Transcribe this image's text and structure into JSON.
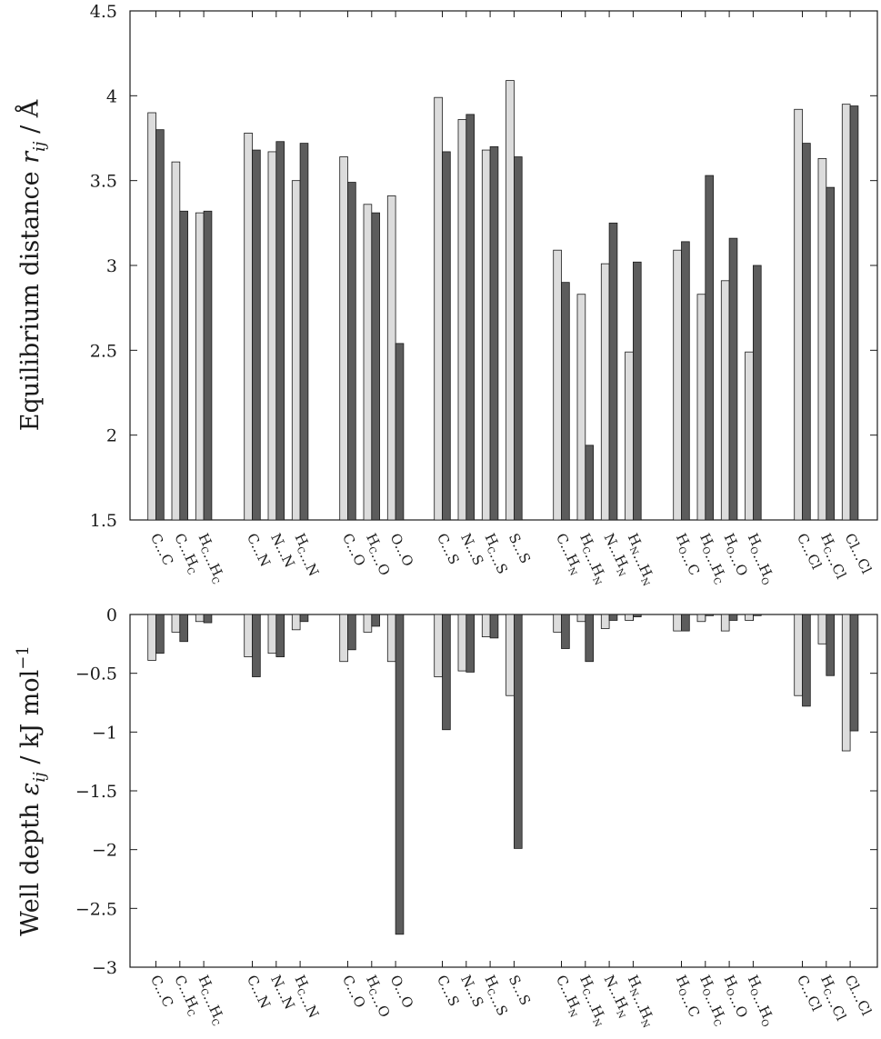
{
  "chart_data": [
    {
      "type": "bar",
      "ylabel": "Equilibrium distance r_ij / Å",
      "ylabel_main": "Equilibrium distance ",
      "ylabel_sym": "r",
      "ylabel_sub": "ij",
      "ylabel_unit": " / Å",
      "ylim": [
        1.5,
        4.5
      ],
      "yticks": [
        1.5,
        2,
        2.5,
        3,
        3.5,
        4,
        4.5
      ],
      "ytick_labels": [
        "1.5",
        "2",
        "2.5",
        "3",
        "3.5",
        "4",
        "4.5"
      ],
      "grid": false,
      "categories": [
        "C...C",
        "C...Hc",
        "Hc...Hc",
        "C...N",
        "N...N",
        "Hc...N",
        "C...O",
        "Hc...O",
        "O...O",
        "C...S",
        "N...S",
        "Hc...S",
        "S...S",
        "C...HN",
        "Hc...HN",
        "N...HN",
        "HN...HN",
        "Ho...C",
        "Ho...Hc",
        "Ho...O",
        "Ho...Ho",
        "C...Cl",
        "Hc...Cl",
        "Cl...Cl"
      ],
      "series": [
        {
          "color": "#dcdcdc",
          "values": [
            3.9,
            3.61,
            3.31,
            3.78,
            3.67,
            3.5,
            3.64,
            3.36,
            3.41,
            3.99,
            3.86,
            3.68,
            4.09,
            3.09,
            2.83,
            3.01,
            2.49,
            3.09,
            2.83,
            2.91,
            2.49,
            3.92,
            3.63,
            3.95
          ]
        },
        {
          "color": "#5c5c5c",
          "values": [
            3.8,
            3.32,
            3.32,
            3.68,
            3.73,
            3.72,
            3.49,
            3.31,
            2.54,
            3.67,
            3.89,
            3.7,
            3.64,
            2.9,
            1.94,
            3.25,
            3.02,
            3.14,
            3.53,
            3.16,
            3.0,
            3.72,
            3.46,
            3.94
          ]
        }
      ]
    },
    {
      "type": "bar",
      "ylabel": "Well depth ε_ij / kJ mol^-1",
      "ylabel_main": "Well depth ",
      "ylabel_sym": "ε",
      "ylabel_sub": "ij",
      "ylabel_unit": " / kJ mol",
      "ylabel_sup": "−1",
      "ylim": [
        -3,
        0
      ],
      "yticks": [
        -3,
        -2.5,
        -2,
        -1.5,
        -1,
        -0.5,
        0
      ],
      "ytick_labels": [
        "−3",
        "−2.5",
        "−2",
        "−1.5",
        "−1",
        "−0.5",
        "0"
      ],
      "grid": false,
      "categories": [
        "C...C",
        "C...Hc",
        "Hc...Hc",
        "C...N",
        "N...N",
        "Hc...N",
        "C...O",
        "Hc...O",
        "O...O",
        "C...S",
        "N...S",
        "Hc...S",
        "S...S",
        "C...HN",
        "Hc...HN",
        "N...HN",
        "HN...HN",
        "Ho...C",
        "Ho...Hc",
        "Ho...O",
        "Ho...Ho",
        "C...Cl",
        "Hc...Cl",
        "Cl...Cl"
      ],
      "series": [
        {
          "color": "#dcdcdc",
          "values": [
            -0.39,
            -0.15,
            -0.06,
            -0.36,
            -0.33,
            -0.13,
            -0.4,
            -0.15,
            -0.4,
            -0.53,
            -0.48,
            -0.19,
            -0.69,
            -0.15,
            -0.06,
            -0.12,
            -0.05,
            -0.14,
            -0.06,
            -0.14,
            -0.05,
            -0.69,
            -0.25,
            -1.16
          ]
        },
        {
          "color": "#5c5c5c",
          "values": [
            -0.33,
            -0.23,
            -0.07,
            -0.53,
            -0.36,
            -0.06,
            -0.3,
            -0.1,
            -2.72,
            -0.98,
            -0.49,
            -0.2,
            -1.99,
            -0.29,
            -0.4,
            -0.05,
            -0.02,
            -0.14,
            -0.01,
            -0.05,
            -0.01,
            -0.78,
            -0.52,
            -0.99
          ]
        }
      ]
    }
  ],
  "category_labels": [
    {
      "parts": [
        [
          "C",
          ""
        ],
        [
          "...",
          ""
        ],
        [
          "C",
          ""
        ]
      ]
    },
    {
      "parts": [
        [
          "C",
          ""
        ],
        [
          "...",
          ""
        ],
        [
          "H",
          "C"
        ]
      ]
    },
    {
      "parts": [
        [
          "H",
          "C"
        ],
        [
          "...",
          ""
        ],
        [
          "H",
          "C"
        ]
      ]
    },
    {
      "parts": [
        [
          "C",
          ""
        ],
        [
          "...",
          ""
        ],
        [
          "N",
          ""
        ]
      ]
    },
    {
      "parts": [
        [
          "N",
          ""
        ],
        [
          "...",
          ""
        ],
        [
          "N",
          ""
        ]
      ]
    },
    {
      "parts": [
        [
          "H",
          "C"
        ],
        [
          "...",
          ""
        ],
        [
          "N",
          ""
        ]
      ]
    },
    {
      "parts": [
        [
          "C",
          ""
        ],
        [
          "...",
          ""
        ],
        [
          "O",
          ""
        ]
      ]
    },
    {
      "parts": [
        [
          "H",
          "C"
        ],
        [
          "...",
          ""
        ],
        [
          "O",
          ""
        ]
      ]
    },
    {
      "parts": [
        [
          "O",
          ""
        ],
        [
          "...",
          ""
        ],
        [
          "O",
          ""
        ]
      ]
    },
    {
      "parts": [
        [
          "C",
          ""
        ],
        [
          "...",
          ""
        ],
        [
          "S",
          ""
        ]
      ]
    },
    {
      "parts": [
        [
          "N",
          ""
        ],
        [
          "...",
          ""
        ],
        [
          "S",
          ""
        ]
      ]
    },
    {
      "parts": [
        [
          "H",
          "C"
        ],
        [
          "...",
          ""
        ],
        [
          "S",
          ""
        ]
      ]
    },
    {
      "parts": [
        [
          "S",
          ""
        ],
        [
          "...",
          ""
        ],
        [
          "S",
          ""
        ]
      ]
    },
    {
      "parts": [
        [
          "C",
          ""
        ],
        [
          "...",
          ""
        ],
        [
          "H",
          "N"
        ]
      ]
    },
    {
      "parts": [
        [
          "H",
          "C"
        ],
        [
          "...",
          ""
        ],
        [
          "H",
          "N"
        ]
      ]
    },
    {
      "parts": [
        [
          "N",
          ""
        ],
        [
          "...",
          ""
        ],
        [
          "H",
          "N"
        ]
      ]
    },
    {
      "parts": [
        [
          "H",
          "N"
        ],
        [
          "...",
          ""
        ],
        [
          "H",
          "N"
        ]
      ]
    },
    {
      "parts": [
        [
          "H",
          "O"
        ],
        [
          "...",
          ""
        ],
        [
          "C",
          ""
        ]
      ]
    },
    {
      "parts": [
        [
          "H",
          "O"
        ],
        [
          "...",
          ""
        ],
        [
          "H",
          "C"
        ]
      ]
    },
    {
      "parts": [
        [
          "H",
          "O"
        ],
        [
          "...",
          ""
        ],
        [
          "O",
          ""
        ]
      ]
    },
    {
      "parts": [
        [
          "H",
          "O"
        ],
        [
          "...",
          ""
        ],
        [
          "H",
          "O"
        ]
      ]
    },
    {
      "parts": [
        [
          "C",
          ""
        ],
        [
          "...",
          ""
        ],
        [
          "Cl",
          ""
        ]
      ]
    },
    {
      "parts": [
        [
          "H",
          "C"
        ],
        [
          "...",
          ""
        ],
        [
          "Cl",
          ""
        ]
      ]
    },
    {
      "parts": [
        [
          "Cl",
          ""
        ],
        [
          "...",
          ""
        ],
        [
          "Cl",
          ""
        ]
      ]
    }
  ]
}
